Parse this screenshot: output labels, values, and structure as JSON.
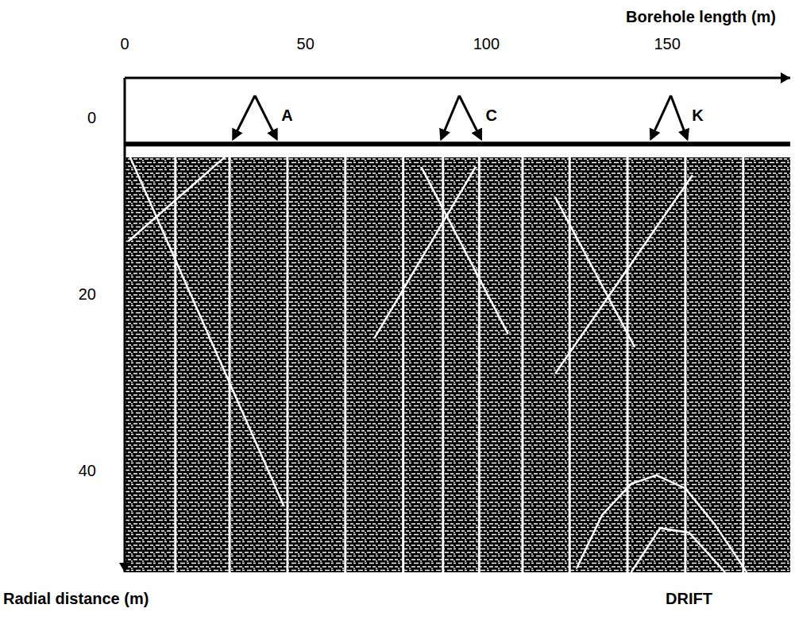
{
  "chart_data": {
    "type": "radargram",
    "x_label": "Borehole length (m)",
    "y_label": "Radial distance (m)",
    "xlim": [
      0,
      184
    ],
    "xticks": [
      0,
      50,
      100,
      150
    ],
    "ylim": [
      -4.5,
      51.5
    ],
    "yticks": [
      0,
      20,
      40
    ],
    "grid": false,
    "surface": 3,
    "traces": [
      14,
      29,
      45,
      61,
      77,
      88,
      98,
      110,
      123,
      139,
      155,
      171
    ],
    "reflectors": [
      [
        [
          1,
          4
        ],
        [
          44,
          44
        ]
      ],
      [
        [
          1,
          14
        ],
        [
          29,
          4
        ]
      ],
      [
        [
          82,
          5.6
        ],
        [
          106,
          24.5
        ]
      ],
      [
        [
          97,
          5.6
        ],
        [
          69,
          25
        ]
      ],
      [
        [
          157,
          6.5
        ],
        [
          119,
          29
        ]
      ],
      [
        [
          119,
          9
        ],
        [
          141,
          26
        ]
      ],
      [
        [
          125,
          51
        ],
        [
          132,
          45
        ],
        [
          140,
          41.5
        ],
        [
          147,
          40.5
        ],
        [
          155,
          42
        ],
        [
          163,
          46
        ],
        [
          172,
          51.5
        ]
      ],
      [
        [
          140,
          51.5
        ],
        [
          148,
          46.5
        ],
        [
          156,
          47
        ],
        [
          166,
          51.5
        ]
      ]
    ],
    "annotations": [
      {
        "label": "A",
        "x": 36,
        "targets": [
          30,
          42
        ]
      },
      {
        "label": "C",
        "x": 92.5,
        "targets": [
          87.5,
          98.5
        ]
      },
      {
        "label": "K",
        "x": 151,
        "targets": [
          145.5,
          155.5
        ]
      }
    ],
    "texts": [
      {
        "text": "DRIFT",
        "x": 156
      }
    ]
  }
}
